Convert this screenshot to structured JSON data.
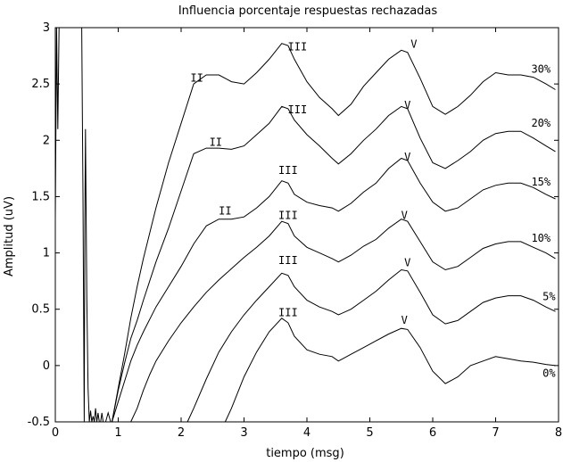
{
  "chart_data": {
    "type": "line",
    "title": "Influencia porcentaje respuestas rechazadas",
    "xlabel": "tiempo (msg)",
    "ylabel": "Amplitud (uV)",
    "xlim": [
      0,
      8
    ],
    "ylim": [
      -0.5,
      3
    ],
    "xticks": [
      0,
      1,
      2,
      3,
      4,
      5,
      6,
      7,
      8
    ],
    "yticks": [
      -0.5,
      0,
      0.5,
      1,
      1.5,
      2,
      2.5,
      3
    ],
    "ytick_labels": [
      "-0.5",
      "0",
      "0.5",
      "1",
      "1.5",
      "2",
      "2.5",
      "3"
    ],
    "grid": false,
    "series": [
      {
        "name": "0%",
        "x": [
          0.0,
          0.04,
          0.08,
          0.12,
          0.16,
          0.2,
          0.25,
          0.3,
          0.35,
          0.4,
          0.45,
          0.5,
          0.55,
          0.6,
          0.65,
          0.7,
          0.75,
          0.8,
          0.85,
          0.9,
          0.95,
          1.0,
          1.05,
          1.1,
          1.15,
          1.2,
          1.25,
          1.3,
          2.7,
          2.8,
          3.0,
          3.2,
          3.4,
          3.6,
          3.7,
          3.8,
          4.0,
          4.2,
          4.4,
          4.5,
          4.7,
          4.9,
          5.1,
          5.3,
          5.5,
          5.6,
          5.8,
          6.0,
          6.2,
          6.4,
          6.6,
          6.8,
          7.0,
          7.2,
          7.4,
          7.6,
          7.8,
          7.95
        ],
        "y": [
          -0.5,
          -0.5,
          -0.5,
          -0.5,
          -0.5,
          -0.5,
          -0.5,
          -0.5,
          -0.5,
          -0.5,
          -0.5,
          -0.5,
          -0.5,
          -0.5,
          -0.5,
          -0.5,
          -0.5,
          -0.5,
          -0.5,
          -0.5,
          -0.5,
          -0.5,
          -0.5,
          -0.5,
          -0.5,
          -0.5,
          -0.5,
          -0.5,
          -0.5,
          -0.38,
          -0.1,
          0.12,
          0.3,
          0.42,
          0.38,
          0.26,
          0.14,
          0.1,
          0.08,
          0.04,
          0.1,
          0.16,
          0.22,
          0.28,
          0.33,
          0.32,
          0.16,
          -0.05,
          -0.16,
          -0.1,
          0.0,
          0.04,
          0.08,
          0.06,
          0.04,
          0.03,
          0.01,
          0.0
        ]
      },
      {
        "name": "5%",
        "x": [
          2.1,
          2.2,
          2.4,
          2.6,
          2.8,
          3.0,
          3.2,
          3.4,
          3.6,
          3.7,
          3.8,
          4.0,
          4.2,
          4.4,
          4.5,
          4.7,
          4.9,
          5.1,
          5.3,
          5.5,
          5.6,
          5.8,
          6.0,
          6.2,
          6.4,
          6.6,
          6.8,
          7.0,
          7.2,
          7.4,
          7.6,
          7.8,
          7.95
        ],
        "y": [
          -0.5,
          -0.38,
          -0.12,
          0.12,
          0.3,
          0.45,
          0.58,
          0.7,
          0.82,
          0.8,
          0.7,
          0.58,
          0.52,
          0.48,
          0.45,
          0.5,
          0.58,
          0.66,
          0.76,
          0.85,
          0.84,
          0.65,
          0.45,
          0.37,
          0.4,
          0.48,
          0.56,
          0.6,
          0.62,
          0.62,
          0.58,
          0.52,
          0.48
        ]
      },
      {
        "name": "10%",
        "x": [
          1.2,
          1.3,
          1.4,
          1.5,
          1.6,
          1.8,
          2.0,
          2.2,
          2.4,
          2.6,
          2.8,
          3.0,
          3.2,
          3.4,
          3.6,
          3.7,
          3.8,
          4.0,
          4.2,
          4.4,
          4.5,
          4.7,
          4.9,
          5.1,
          5.3,
          5.5,
          5.6,
          5.8,
          6.0,
          6.2,
          6.4,
          6.6,
          6.8,
          7.0,
          7.2,
          7.4,
          7.6,
          7.8,
          7.95
        ],
        "y": [
          -0.5,
          -0.38,
          -0.22,
          -0.08,
          0.04,
          0.22,
          0.38,
          0.52,
          0.65,
          0.76,
          0.86,
          0.96,
          1.05,
          1.15,
          1.28,
          1.26,
          1.15,
          1.05,
          1.0,
          0.95,
          0.92,
          0.98,
          1.06,
          1.12,
          1.22,
          1.3,
          1.28,
          1.1,
          0.92,
          0.85,
          0.88,
          0.96,
          1.04,
          1.08,
          1.1,
          1.1,
          1.05,
          1.0,
          0.95
        ]
      },
      {
        "name": "15%",
        "x": [
          0.9,
          1.0,
          1.1,
          1.2,
          1.3,
          1.4,
          1.6,
          1.8,
          2.0,
          2.2,
          2.4,
          2.6,
          2.8,
          3.0,
          3.2,
          3.4,
          3.6,
          3.7,
          3.8,
          4.0,
          4.2,
          4.4,
          4.5,
          4.7,
          4.9,
          5.1,
          5.3,
          5.5,
          5.6,
          5.8,
          6.0,
          6.2,
          6.4,
          6.6,
          6.8,
          7.0,
          7.2,
          7.4,
          7.6,
          7.8,
          7.95
        ],
        "y": [
          -0.5,
          -0.32,
          -0.14,
          0.04,
          0.18,
          0.3,
          0.52,
          0.7,
          0.88,
          1.08,
          1.24,
          1.3,
          1.3,
          1.32,
          1.4,
          1.5,
          1.64,
          1.62,
          1.52,
          1.45,
          1.42,
          1.4,
          1.37,
          1.44,
          1.54,
          1.62,
          1.75,
          1.84,
          1.82,
          1.62,
          1.45,
          1.37,
          1.4,
          1.48,
          1.56,
          1.6,
          1.62,
          1.62,
          1.58,
          1.52,
          1.48
        ]
      },
      {
        "name": "20%",
        "x": [
          0.9,
          1.0,
          1.1,
          1.2,
          1.3,
          1.4,
          1.6,
          1.8,
          2.0,
          2.2,
          2.4,
          2.6,
          2.8,
          3.0,
          3.2,
          3.4,
          3.6,
          3.7,
          3.8,
          4.0,
          4.2,
          4.4,
          4.5,
          4.7,
          4.9,
          5.1,
          5.3,
          5.5,
          5.6,
          5.8,
          6.0,
          6.2,
          6.4,
          6.6,
          6.8,
          7.0,
          7.2,
          7.4,
          7.6,
          7.8,
          7.95
        ],
        "y": [
          -0.5,
          -0.22,
          0.02,
          0.24,
          0.4,
          0.58,
          0.92,
          1.22,
          1.55,
          1.88,
          1.93,
          1.93,
          1.92,
          1.95,
          2.05,
          2.15,
          2.3,
          2.28,
          2.18,
          2.05,
          1.95,
          1.84,
          1.79,
          1.88,
          2.0,
          2.1,
          2.22,
          2.3,
          2.28,
          2.02,
          1.8,
          1.75,
          1.82,
          1.9,
          2.0,
          2.06,
          2.08,
          2.08,
          2.02,
          1.95,
          1.9
        ]
      },
      {
        "name": "30%",
        "x": [
          0.9,
          1.0,
          1.1,
          1.2,
          1.3,
          1.4,
          1.6,
          1.8,
          2.0,
          2.2,
          2.4,
          2.6,
          2.8,
          3.0,
          3.2,
          3.4,
          3.6,
          3.7,
          3.8,
          4.0,
          4.2,
          4.4,
          4.5,
          4.7,
          4.9,
          5.1,
          5.3,
          5.5,
          5.6,
          5.8,
          6.0,
          6.2,
          6.4,
          6.6,
          6.8,
          7.0,
          7.2,
          7.4,
          7.6,
          7.8,
          7.95
        ],
        "y": [
          -0.5,
          -0.2,
          0.1,
          0.42,
          0.7,
          0.95,
          1.4,
          1.8,
          2.15,
          2.5,
          2.58,
          2.58,
          2.52,
          2.5,
          2.6,
          2.72,
          2.86,
          2.84,
          2.72,
          2.52,
          2.38,
          2.28,
          2.22,
          2.32,
          2.48,
          2.6,
          2.72,
          2.8,
          2.78,
          2.55,
          2.3,
          2.23,
          2.3,
          2.4,
          2.52,
          2.6,
          2.58,
          2.58,
          2.56,
          2.5,
          2.45
        ]
      }
    ],
    "spike": {
      "x": [
        0.0,
        0.02,
        0.04,
        0.06,
        0.08,
        0.12,
        0.18,
        0.24,
        0.3,
        0.34,
        0.38,
        0.42,
        0.44,
        0.46,
        0.47,
        0.48,
        0.5,
        0.52,
        0.54,
        0.56,
        0.58,
        0.6,
        0.62,
        0.64,
        0.66,
        0.68,
        0.7,
        0.72,
        0.74,
        0.76,
        0.8,
        0.84,
        0.88,
        0.92
      ],
      "y": [
        1.3,
        3.0,
        2.1,
        3.0,
        3.0,
        3.0,
        3.0,
        3.0,
        3.0,
        3.0,
        3.0,
        3.0,
        1.5,
        -0.5,
        1.3,
        2.1,
        0.6,
        -0.2,
        -0.5,
        -0.4,
        -0.5,
        -0.45,
        -0.5,
        -0.38,
        -0.5,
        -0.42,
        -0.5,
        -0.5,
        -0.42,
        -0.5,
        -0.5,
        -0.42,
        -0.5,
        -0.5
      ]
    },
    "annotations": [
      {
        "text": "II",
        "x": 2.25,
        "y": 2.52
      },
      {
        "text": "III",
        "x": 3.85,
        "y": 2.8
      },
      {
        "text": "V",
        "x": 5.7,
        "y": 2.82
      },
      {
        "text": "II",
        "x": 2.55,
        "y": 1.95
      },
      {
        "text": "III",
        "x": 3.85,
        "y": 2.24
      },
      {
        "text": "V",
        "x": 5.6,
        "y": 2.28
      },
      {
        "text": "II",
        "x": 2.7,
        "y": 1.34
      },
      {
        "text": "III",
        "x": 3.7,
        "y": 1.7
      },
      {
        "text": "V",
        "x": 5.6,
        "y": 1.82
      },
      {
        "text": "III",
        "x": 3.7,
        "y": 1.3
      },
      {
        "text": "V",
        "x": 5.55,
        "y": 1.3
      },
      {
        "text": "III",
        "x": 3.7,
        "y": 0.9
      },
      {
        "text": "V",
        "x": 5.6,
        "y": 0.88
      },
      {
        "text": "III",
        "x": 3.7,
        "y": 0.44
      },
      {
        "text": "V",
        "x": 5.55,
        "y": 0.37
      }
    ],
    "series_labels": [
      {
        "text": "30%",
        "x": 7.72,
        "y": 2.6
      },
      {
        "text": "20%",
        "x": 7.72,
        "y": 2.12
      },
      {
        "text": "15%",
        "x": 7.72,
        "y": 1.6
      },
      {
        "text": "10%",
        "x": 7.72,
        "y": 1.1
      },
      {
        "text": "5%",
        "x": 7.85,
        "y": 0.58
      },
      {
        "text": "0%",
        "x": 7.85,
        "y": -0.1
      }
    ]
  }
}
